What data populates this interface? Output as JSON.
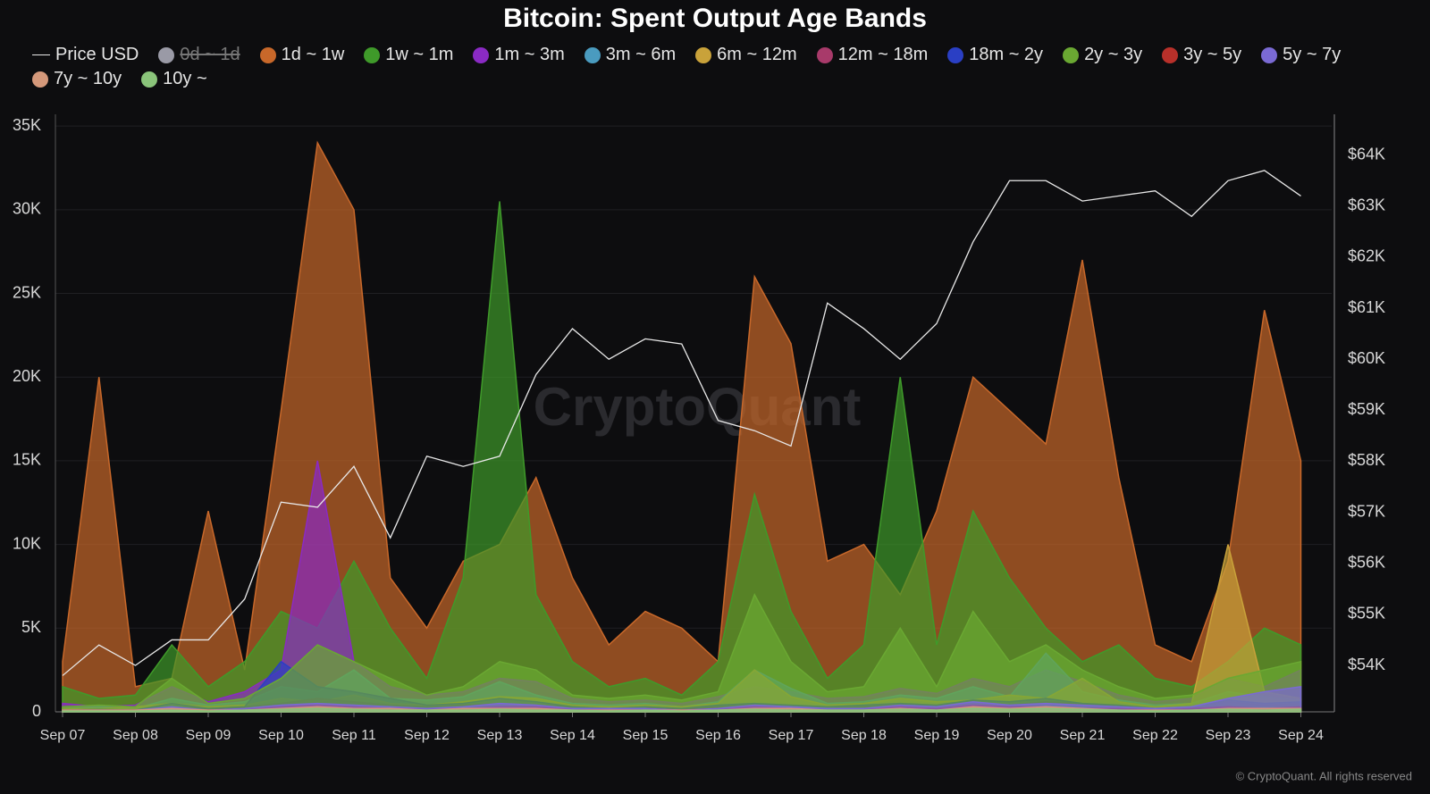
{
  "chart_data": {
    "type": "area",
    "title": "Bitcoin: Spent Output Age Bands",
    "watermark": "CryptoQuant",
    "footer": "© CryptoQuant. All rights reserved",
    "categories": [
      "Sep 07",
      null,
      "Sep 08",
      null,
      "Sep 09",
      null,
      "Sep 10",
      null,
      "Sep 11",
      null,
      "Sep 12",
      null,
      "Sep 13",
      null,
      "Sep 14",
      null,
      "Sep 15",
      null,
      "Sep 16",
      null,
      "Sep 17",
      null,
      "Sep 18",
      null,
      "Sep 19",
      null,
      "Sep 20",
      null,
      "Sep 21",
      null,
      "Sep 22",
      null,
      "Sep 23",
      null,
      "Sep 24"
    ],
    "ylim": [
      0,
      35700
    ],
    "yticks": [
      0,
      {
        "value": 5000,
        "label": "5K"
      },
      {
        "value": 10000,
        "label": "10K"
      },
      {
        "value": 15000,
        "label": "15K"
      },
      {
        "value": 20000,
        "label": "20K"
      },
      {
        "value": 25000,
        "label": "25K"
      },
      {
        "value": 30000,
        "label": "30K"
      },
      {
        "value": 35000,
        "label": "35K"
      }
    ],
    "y2lim": [
      53090,
      64800
    ],
    "y2ticks": [
      {
        "value": 54000,
        "label": "$54K"
      },
      {
        "value": 55000,
        "label": "$55K"
      },
      {
        "value": 56000,
        "label": "$56K"
      },
      {
        "value": 57000,
        "label": "$57K"
      },
      {
        "value": 58000,
        "label": "$58K"
      },
      {
        "value": 59000,
        "label": "$59K"
      },
      {
        "value": 60000,
        "label": "$60K"
      },
      {
        "value": 61000,
        "label": "$61K"
      },
      {
        "value": 62000,
        "label": "$62K"
      },
      {
        "value": 63000,
        "label": "$63K"
      },
      {
        "value": 64000,
        "label": "$64K"
      }
    ],
    "grid": true,
    "series": [
      {
        "name": "Price USD",
        "color": "#e8e8e8",
        "type": "line",
        "axis": "y2",
        "values": [
          53800,
          54400,
          54000,
          54500,
          54500,
          55300,
          57200,
          57100,
          57900,
          56500,
          58100,
          57900,
          58100,
          59700,
          60600,
          60000,
          60400,
          60300,
          58800,
          58600,
          58300,
          61100,
          60600,
          60000,
          60700,
          62300,
          63500,
          63500,
          63100,
          63200,
          63300,
          62800,
          63500,
          63700,
          63200
        ]
      },
      {
        "name": "0d ~ 1d",
        "color": "#9a9aa6",
        "hidden": true
      },
      {
        "name": "1d ~ 1w",
        "color": "#c8682a",
        "values": [
          3000,
          20000,
          1500,
          2000,
          12000,
          2500,
          18000,
          34000,
          30000,
          8000,
          5000,
          9000,
          10000,
          14000,
          8000,
          4000,
          6000,
          5000,
          3000,
          26000,
          22000,
          9000,
          10000,
          7000,
          12000,
          20000,
          18000,
          16000,
          27000,
          14000,
          4000,
          3000,
          9000,
          24000,
          15000
        ]
      },
      {
        "name": "1w ~ 1m",
        "color": "#3f9a2a",
        "values": [
          1500,
          800,
          1000,
          4000,
          1500,
          3000,
          6000,
          5000,
          9000,
          5000,
          2000,
          8000,
          30500,
          7000,
          3000,
          1500,
          2000,
          1000,
          3000,
          13000,
          6000,
          2000,
          4000,
          20000,
          4000,
          12000,
          8000,
          5000,
          3000,
          4000,
          2000,
          1500,
          3000,
          5000,
          4000
        ]
      },
      {
        "name": "1m ~ 3m",
        "color": "#8a2ac4",
        "values": [
          500,
          300,
          400,
          1500,
          600,
          1200,
          2500,
          15000,
          3000,
          1500,
          1000,
          1200,
          2000,
          1800,
          800,
          600,
          700,
          500,
          900,
          1500,
          1200,
          800,
          900,
          1400,
          1100,
          2000,
          1500,
          2500,
          1800,
          1000,
          600,
          800,
          2000,
          1500,
          2500
        ]
      },
      {
        "name": "3m ~ 6m",
        "color": "#4a9bbf",
        "values": [
          200,
          300,
          200,
          800,
          400,
          600,
          1500,
          1200,
          2500,
          800,
          700,
          900,
          1800,
          1000,
          500,
          400,
          500,
          300,
          600,
          2500,
          1400,
          500,
          600,
          1000,
          800,
          1500,
          900,
          3500,
          1200,
          700,
          400,
          500,
          1200,
          900,
          700
        ]
      },
      {
        "name": "6m ~ 12m",
        "color": "#c9a23a",
        "values": [
          200,
          200,
          300,
          500,
          300,
          400,
          800,
          600,
          1000,
          500,
          400,
          600,
          900,
          800,
          400,
          300,
          400,
          300,
          500,
          2500,
          900,
          400,
          500,
          800,
          600,
          700,
          1000,
          800,
          2000,
          600,
          300,
          500,
          10000,
          1200,
          800
        ]
      },
      {
        "name": "12m ~ 18m",
        "color": "#a83a6a",
        "values": [
          100,
          150,
          100,
          300,
          200,
          300,
          500,
          800,
          600,
          400,
          300,
          400,
          500,
          400,
          300,
          200,
          300,
          200,
          300,
          400,
          300,
          200,
          300,
          400,
          300,
          500,
          400,
          600,
          500,
          300,
          200,
          300,
          600,
          400,
          500
        ]
      },
      {
        "name": "18m ~ 2y",
        "color": "#2a3fc4",
        "values": [
          100,
          150,
          100,
          500,
          200,
          300,
          3000,
          1500,
          1200,
          800,
          400,
          500,
          800,
          600,
          300,
          200,
          300,
          200,
          400,
          500,
          400,
          300,
          400,
          500,
          400,
          700,
          600,
          800,
          500,
          400,
          200,
          300,
          700,
          500,
          600
        ]
      },
      {
        "name": "2y ~ 3y",
        "color": "#6aa832",
        "values": [
          300,
          400,
          300,
          2000,
          500,
          800,
          2000,
          4000,
          3000,
          2000,
          1000,
          1500,
          3000,
          2500,
          1000,
          800,
          1000,
          700,
          1200,
          7000,
          3000,
          1200,
          1500,
          5000,
          1500,
          6000,
          3000,
          4000,
          2500,
          1500,
          800,
          1000,
          2000,
          2500,
          3000
        ]
      },
      {
        "name": "3y ~ 5y",
        "color": "#b8302a",
        "values": [
          100,
          100,
          100,
          200,
          100,
          200,
          300,
          400,
          300,
          200,
          200,
          200,
          300,
          300,
          200,
          100,
          200,
          100,
          200,
          300,
          200,
          100,
          200,
          300,
          200,
          400,
          300,
          300,
          200,
          200,
          100,
          200,
          300,
          200,
          300
        ]
      },
      {
        "name": "5y ~ 7y",
        "color": "#7a6ad4",
        "values": [
          100,
          100,
          100,
          300,
          100,
          200,
          400,
          500,
          400,
          300,
          200,
          300,
          500,
          400,
          200,
          200,
          200,
          100,
          200,
          400,
          300,
          200,
          200,
          400,
          300,
          600,
          400,
          500,
          400,
          300,
          200,
          300,
          800,
          1200,
          1500
        ]
      },
      {
        "name": "7y ~ 10y",
        "color": "#d4987a",
        "values": [
          100,
          100,
          100,
          200,
          100,
          100,
          200,
          300,
          200,
          200,
          100,
          200,
          200,
          200,
          100,
          100,
          100,
          100,
          100,
          200,
          200,
          100,
          100,
          200,
          100,
          300,
          200,
          300,
          200,
          100,
          100,
          100,
          200,
          200,
          200
        ]
      },
      {
        "name": "10y ~",
        "color": "#8ac47a",
        "values": [
          50,
          50,
          50,
          100,
          50,
          100,
          150,
          200,
          150,
          100,
          100,
          100,
          150,
          100,
          100,
          50,
          100,
          50,
          100,
          150,
          100,
          100,
          100,
          150,
          100,
          200,
          150,
          200,
          150,
          100,
          50,
          100,
          150,
          100,
          150
        ]
      }
    ]
  }
}
